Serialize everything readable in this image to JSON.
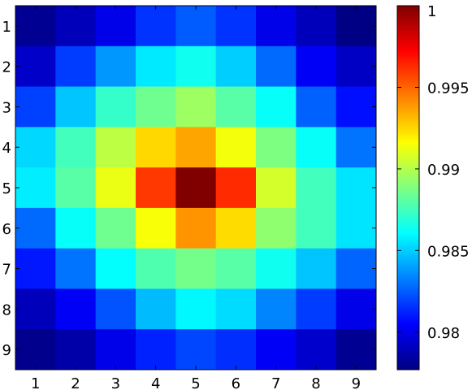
{
  "chart_data": {
    "type": "heatmap",
    "x": [
      1,
      2,
      3,
      4,
      5,
      6,
      7,
      8,
      9
    ],
    "y": [
      1,
      2,
      3,
      4,
      5,
      6,
      7,
      8,
      9
    ],
    "z": [
      [
        0.9781,
        0.979,
        0.98,
        0.9816,
        0.9825,
        0.9816,
        0.98,
        0.979,
        0.9778
      ],
      [
        0.9793,
        0.9818,
        0.9838,
        0.9856,
        0.9864,
        0.985,
        0.9828,
        0.9803,
        0.9792
      ],
      [
        0.9819,
        0.9848,
        0.9872,
        0.9885,
        0.9895,
        0.988,
        0.9862,
        0.9826,
        0.9808
      ],
      [
        0.9852,
        0.9875,
        0.9902,
        0.9925,
        0.9936,
        0.9914,
        0.9888,
        0.9862,
        0.983
      ],
      [
        0.9857,
        0.988,
        0.9912,
        0.996,
        1.0,
        0.9963,
        0.9907,
        0.9875,
        0.9855
      ],
      [
        0.9828,
        0.9862,
        0.9885,
        0.9915,
        0.994,
        0.9924,
        0.9892,
        0.9875,
        0.9855
      ],
      [
        0.981,
        0.983,
        0.9861,
        0.9878,
        0.9886,
        0.988,
        0.9864,
        0.9848,
        0.9827
      ],
      [
        0.979,
        0.9803,
        0.9823,
        0.9846,
        0.9859,
        0.9853,
        0.9834,
        0.9818,
        0.98
      ],
      [
        0.978,
        0.9786,
        0.98,
        0.9812,
        0.982,
        0.9815,
        0.9803,
        0.9794,
        0.9781
      ]
    ],
    "xticks": [
      "1",
      "2",
      "3",
      "4",
      "5",
      "6",
      "7",
      "8",
      "9"
    ],
    "yticks": [
      "1",
      "2",
      "3",
      "4",
      "5",
      "6",
      "7",
      "8",
      "9"
    ],
    "colorbar": {
      "colormap": "jet",
      "clim": [
        0.9777,
        1.0
      ],
      "ticks": [
        0.98,
        0.985,
        0.99,
        0.995,
        1
      ],
      "tick_labels": [
        "0.98",
        "0.985",
        "0.99",
        "0.995",
        "1"
      ]
    }
  }
}
